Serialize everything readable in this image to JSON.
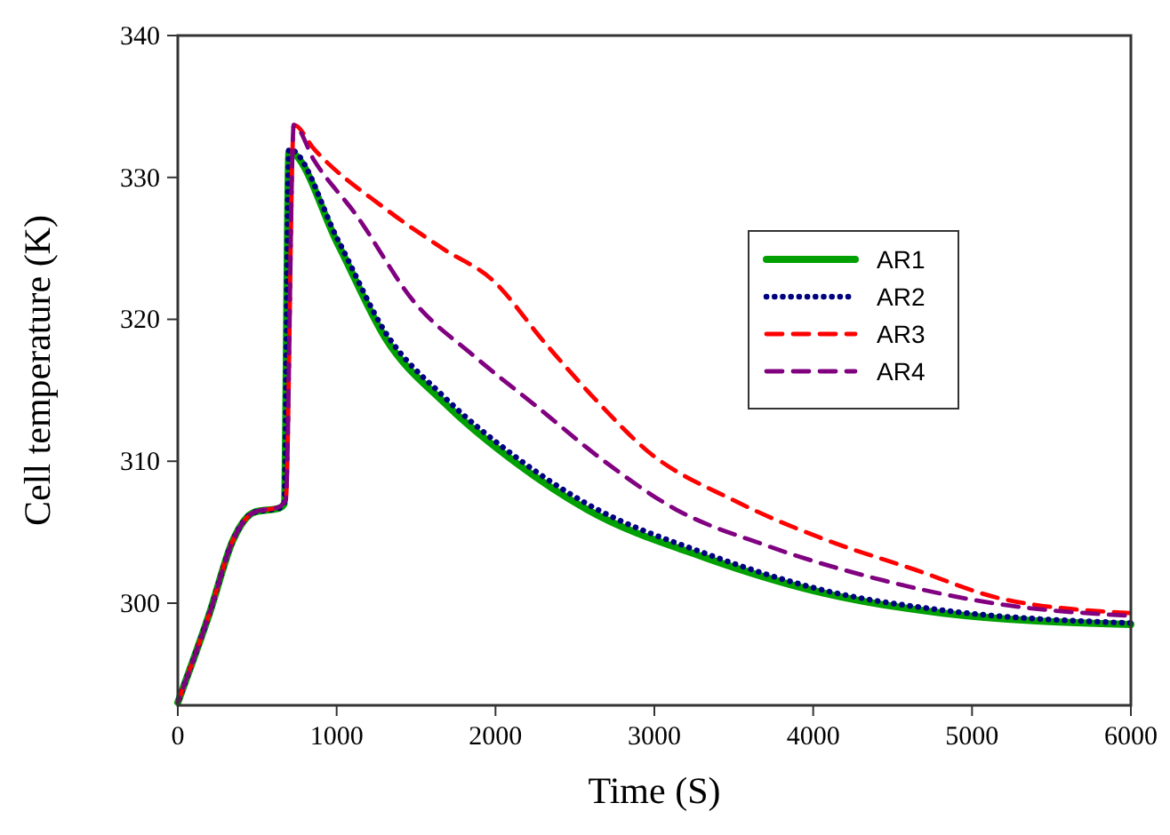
{
  "chart_data": {
    "type": "line",
    "xlabel": "Time (S)",
    "ylabel": "Cell temperature (K)",
    "xlim": [
      0,
      6000
    ],
    "ylim": [
      292.8,
      340
    ],
    "xticks": [
      0,
      1000,
      2000,
      3000,
      4000,
      5000,
      6000
    ],
    "yticks": [
      {
        "value": 300,
        "label": "300"
      },
      {
        "value": 310,
        "label": "310"
      },
      {
        "value": 320,
        "label": "320"
      },
      {
        "value": 330,
        "label": "330"
      },
      {
        "value": 340,
        "label": "340"
      }
    ],
    "grid": false,
    "legend": "right",
    "series": [
      {
        "name": "AR1",
        "color": "#00a000",
        "line_style": "solid",
        "x": [
          0,
          200,
          350,
          480,
          640,
          670,
          700,
          1008,
          1306,
          1680,
          2128,
          2576,
          3322,
          4070,
          4815,
          6000
        ],
        "values": [
          293,
          299.3,
          304.5,
          306.4,
          306.7,
          307,
          331.8,
          325.3,
          318.7,
          314.1,
          309.9,
          306.6,
          303.2,
          300.7,
          299.3,
          298.5
        ]
      },
      {
        "name": "AR2",
        "color": "#000080",
        "line_style": "dotted",
        "x": [
          0,
          200,
          350,
          480,
          640,
          670,
          700,
          1008,
          1306,
          1680,
          2128,
          2576,
          3322,
          4070,
          4815,
          6000
        ],
        "values": [
          293,
          299.3,
          304.5,
          306.4,
          306.7,
          307,
          332,
          325.6,
          319.1,
          314.5,
          310.3,
          307,
          303.5,
          300.9,
          299.5,
          298.6
        ]
      },
      {
        "name": "AR3",
        "color": "#ff0000",
        "line_style": "dashed",
        "x": [
          0,
          200,
          350,
          480,
          640,
          680,
          730,
          858,
          1306,
          1680,
          1978,
          2314,
          2650,
          2948,
          3508,
          4070,
          4630,
          5190,
          6000
        ],
        "values": [
          293,
          299.3,
          304.5,
          306.4,
          306.8,
          307.3,
          333.7,
          332,
          327.8,
          324.9,
          322.8,
          318.3,
          314.1,
          310.8,
          307.2,
          304.5,
          302.4,
          300.3,
          299.3
        ]
      },
      {
        "name": "AR4",
        "color": "#800080",
        "line_style": "dashed",
        "x": [
          0,
          200,
          350,
          480,
          640,
          680,
          730,
          858,
          1120,
          1490,
          1866,
          2277,
          2650,
          3136,
          3695,
          4442,
          5190,
          6000
        ],
        "values": [
          293,
          299.3,
          304.5,
          306.4,
          306.8,
          307.3,
          333.7,
          331.2,
          327.4,
          321.2,
          317.4,
          313.7,
          310.3,
          306.6,
          304.1,
          301.6,
          299.9,
          299.1
        ]
      }
    ]
  }
}
